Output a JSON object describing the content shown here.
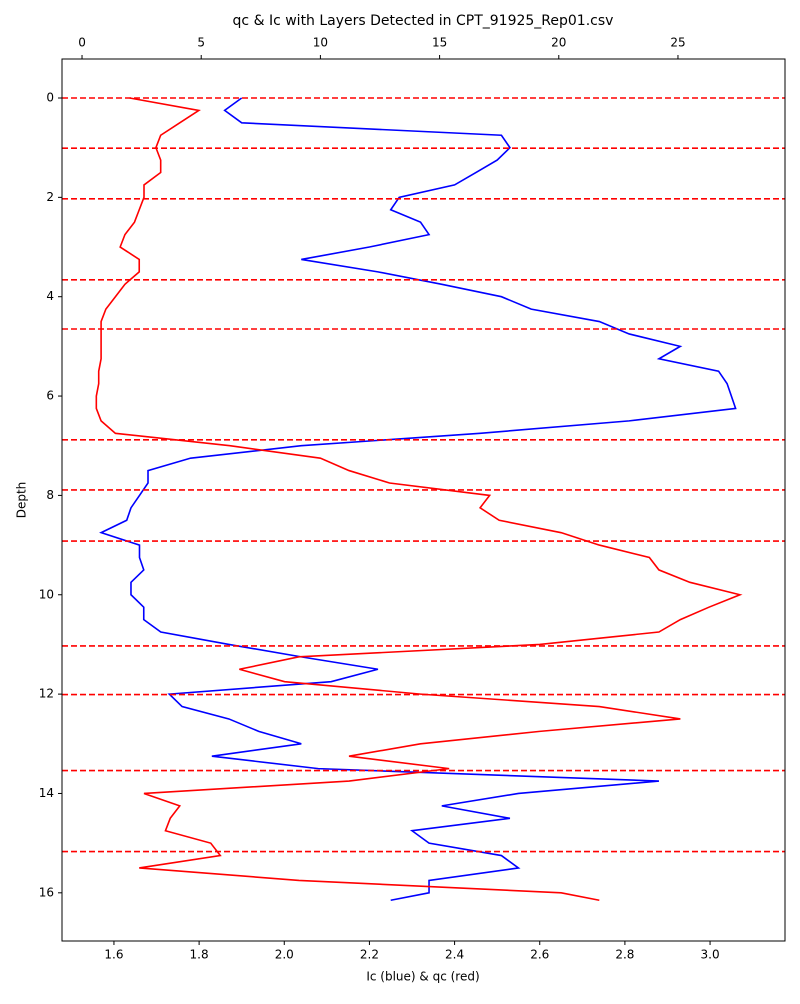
{
  "chart_data": {
    "type": "line",
    "orientation": "vertical",
    "title": "qc & Ic with Layers Detected in CPT_91925_Rep01.csv",
    "xlabel": "Ic (blue) & qc (red)",
    "ylabel": "Depth",
    "depth": [
      0,
      0.25,
      0.5,
      0.75,
      1,
      1.25,
      1.5,
      1.75,
      2,
      2.25,
      2.5,
      2.75,
      3,
      3.25,
      3.5,
      3.75,
      4,
      4.25,
      4.5,
      4.75,
      5,
      5.25,
      5.5,
      5.75,
      6,
      6.25,
      6.5,
      6.75,
      7,
      7.25,
      7.5,
      7.75,
      8,
      8.25,
      8.5,
      8.75,
      9,
      9.25,
      9.5,
      9.75,
      10,
      10.25,
      10.5,
      10.75,
      11,
      11.25,
      11.5,
      11.75,
      12,
      12.25,
      12.5,
      12.75,
      13,
      13.25,
      13.5,
      13.75,
      14,
      14.25,
      14.5,
      14.75,
      15,
      15.25,
      15.5,
      15.75,
      16,
      16.15
    ],
    "series": [
      {
        "color": "#0000ff",
        "axis": "x",
        "values": [
          1.9,
          1.86,
          1.9,
          2.51,
          2.53,
          2.5,
          2.45,
          2.4,
          2.27,
          2.25,
          2.32,
          2.34,
          2.2,
          2.04,
          2.22,
          2.37,
          2.51,
          2.58,
          2.74,
          2.81,
          2.93,
          2.88,
          3.02,
          3.04,
          3.05,
          3.06,
          2.81,
          2.46,
          2.04,
          1.78,
          1.68,
          1.68,
          1.66,
          1.64,
          1.63,
          1.57,
          1.66,
          1.66,
          1.67,
          1.64,
          1.64,
          1.67,
          1.67,
          1.71,
          1.87,
          2.04,
          2.22,
          2.11,
          1.73,
          1.76,
          1.87,
          1.94,
          2.04,
          1.83,
          2.08,
          2.88,
          2.55,
          2.37,
          2.53,
          2.3,
          2.34,
          2.51,
          2.55,
          2.34,
          2.34,
          2.25
        ]
      },
      {
        "color": "#ff0000",
        "axis": "x2",
        "values": [
          2.0,
          4.9,
          4.1,
          3.3,
          3.1,
          3.3,
          3.3,
          2.6,
          2.6,
          2.4,
          2.2,
          1.8,
          1.6,
          2.4,
          2.4,
          1.8,
          1.4,
          1.0,
          0.8,
          0.8,
          0.8,
          0.8,
          0.7,
          0.7,
          0.6,
          0.6,
          0.8,
          1.4,
          6.2,
          10.0,
          11.2,
          12.9,
          17.1,
          16.7,
          17.5,
          20.1,
          21.7,
          23.8,
          24.2,
          25.5,
          27.6,
          26.3,
          25.1,
          24.2,
          19.2,
          9.1,
          6.6,
          8.5,
          14.2,
          21.7,
          25.1,
          19.2,
          14.2,
          11.2,
          15.4,
          11.2,
          2.6,
          4.1,
          3.7,
          3.5,
          5.4,
          5.8,
          2.4,
          9.1,
          20.1,
          21.7
        ]
      }
    ],
    "layers": [
      0,
      1.01,
      2.03,
      3.66,
      4.65,
      6.88,
      7.89,
      8.92,
      11.03,
      12.01,
      13.54,
      15.17
    ],
    "layer_color": "#ff0000",
    "xlim": [
      1.478,
      3.176
    ],
    "xticks": [
      1.6,
      1.8,
      {
        "value": 2.0,
        "label": "2.0"
      },
      2.2,
      2.4,
      2.6,
      2.8,
      {
        "value": 3.0,
        "label": "3.0"
      }
    ],
    "x2lim": [
      -0.84,
      29.49
    ],
    "x2ticks": [
      0,
      5,
      10,
      15,
      20,
      25
    ],
    "ylim": [
      16.97,
      -0.785
    ],
    "yticks": [
      0,
      2,
      4,
      6,
      8,
      10,
      12,
      14,
      16
    ]
  }
}
